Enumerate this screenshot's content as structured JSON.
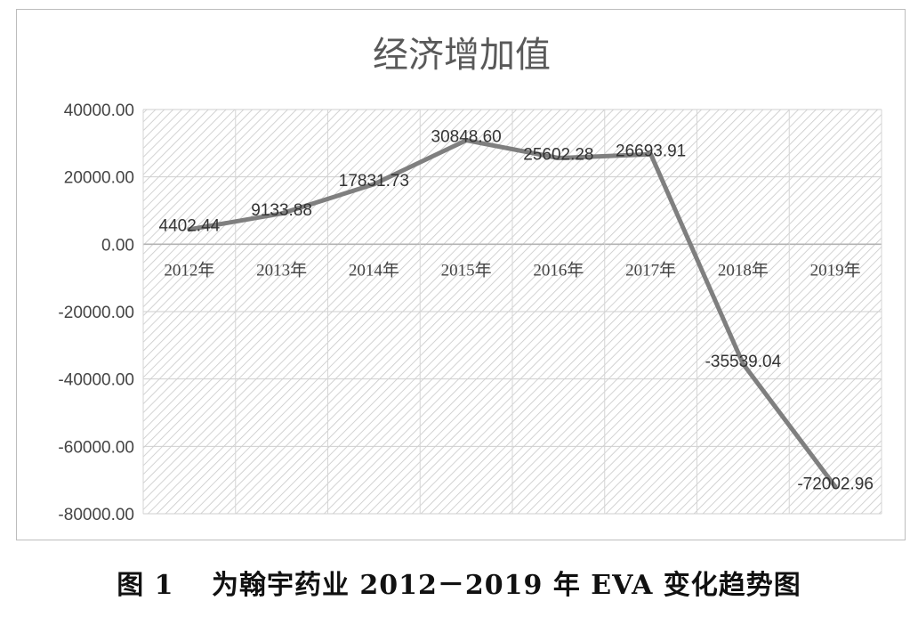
{
  "chart_data": {
    "type": "line",
    "title": "经济增加值",
    "xlabel": "",
    "ylabel": "",
    "categories": [
      "2012年",
      "2013年",
      "2014年",
      "2015年",
      "2016年",
      "2017年",
      "2018年",
      "2019年"
    ],
    "series": [
      {
        "values": [
          4402.44,
          9133.88,
          17831.73,
          30848.6,
          25602.28,
          26693.91,
          -35539.04,
          -72002.96
        ],
        "value_labels": [
          "4402.44",
          "9133.88",
          "17831.73",
          "30848.60",
          "25602.28",
          "26693.91",
          "-35539.04",
          "-72002.96"
        ],
        "color": "#7f7f7f"
      }
    ],
    "ylim": [
      -80000,
      40000
    ],
    "yticks": [
      40000,
      20000,
      0,
      -20000,
      -40000,
      -60000,
      -80000
    ],
    "ytick_labels": [
      "40000.00",
      "20000.00",
      "0.00",
      "-20000.00",
      "-40000.00",
      "-60000.00",
      "-80000.00"
    ],
    "grid": true,
    "legend": "none",
    "plot_background": "diagonal-hatch"
  },
  "caption": "图 1　 为翰宇药业 2012－2019 年 EVA 变化趋势图"
}
